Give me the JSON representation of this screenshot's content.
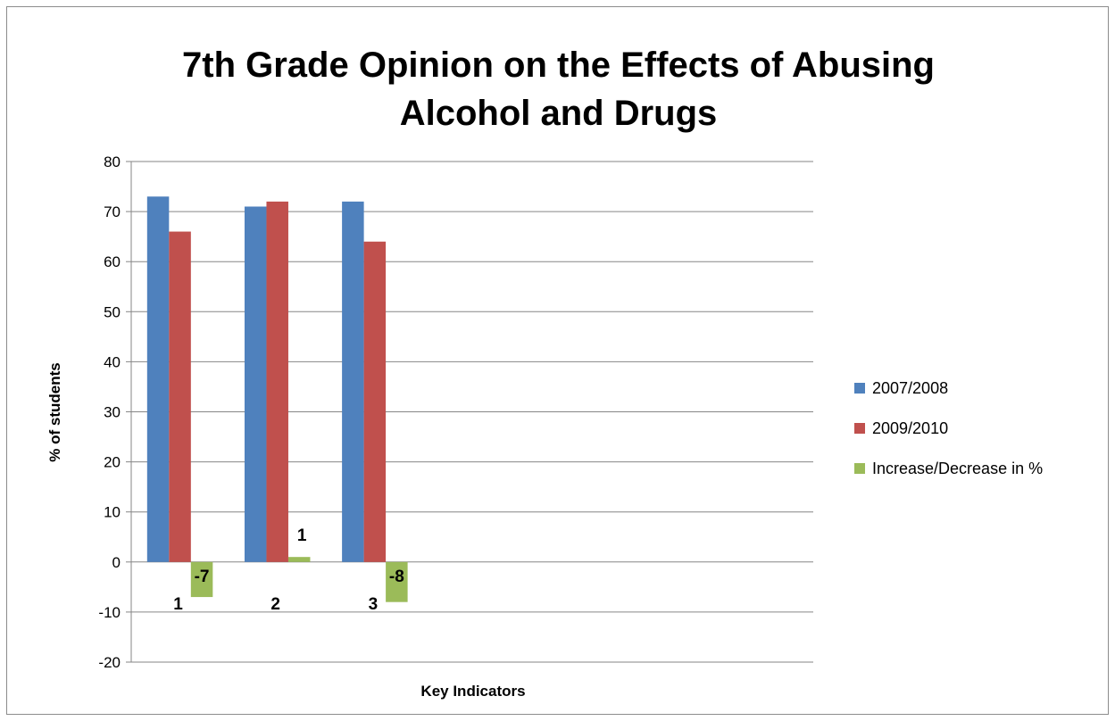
{
  "chart_data": {
    "type": "bar",
    "title": "7th Grade Opinion on the Effects of Abusing Alcohol and Drugs",
    "title_lines": [
      "7th Grade Opinion on the Effects of Abusing",
      "Alcohol and Drugs"
    ],
    "xlabel": "Key Indicators",
    "ylabel": "% of students",
    "ylim": [
      -20,
      80
    ],
    "yticks": [
      -20,
      -10,
      0,
      10,
      20,
      30,
      40,
      50,
      60,
      70,
      80
    ],
    "grid": true,
    "legend_position": "right",
    "categories": [
      "1",
      "2",
      "3",
      "",
      "",
      "",
      ""
    ],
    "series": [
      {
        "name": "2007/2008",
        "color": "#4f81bd",
        "values": [
          73,
          71,
          72,
          null,
          null,
          null,
          null
        ]
      },
      {
        "name": "2009/2010",
        "color": "#c0504d",
        "values": [
          66,
          72,
          64,
          null,
          null,
          null,
          null
        ]
      },
      {
        "name": "Increase/Decrease in %",
        "color": "#9bbb59",
        "values": [
          -7,
          1,
          -8,
          null,
          null,
          null,
          null
        ]
      }
    ],
    "data_labels": {
      "series_index": 2,
      "labels": [
        "-7",
        "1",
        "-8"
      ]
    }
  }
}
